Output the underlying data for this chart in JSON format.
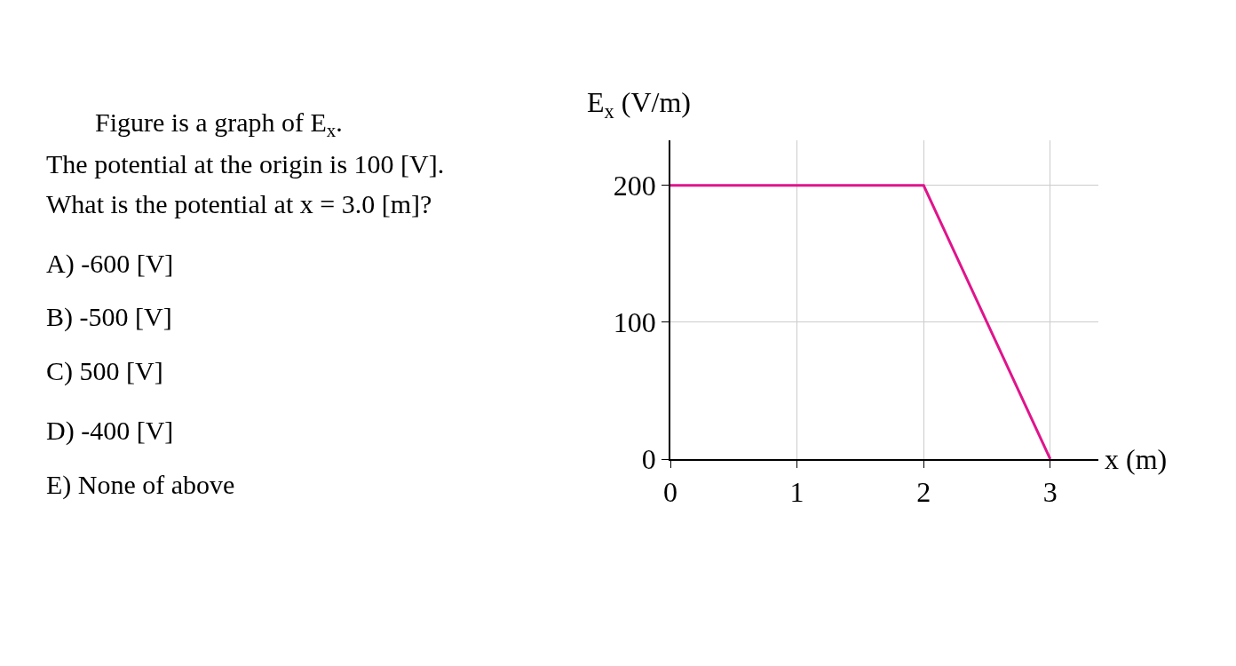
{
  "chart_data": {
    "type": "line",
    "xlabel": "x (m)",
    "ylabel": "E$_{x}$ (V/m)",
    "x": [
      0,
      2,
      3
    ],
    "series": [
      {
        "color": "#e0148c",
        "values": [
          200,
          200,
          0
        ]
      }
    ],
    "xlim": [
      0,
      3.38
    ],
    "ylim": [
      0,
      233
    ],
    "xticks": [
      0,
      1,
      2,
      3
    ],
    "yticks": [
      0,
      100,
      200
    ],
    "grid": true,
    "marker": "none",
    "line_style": "solid",
    "annotations": [
      "Figure is a graph of E$_{x}$.",
      "The potential at the origin is 100 [V].",
      "What is the potential at x = 3.0 [m]?",
      "A) -600 [V]",
      "B) -500 [V]",
      "C) 500 [V]",
      "D) -400 [V]",
      "E) None of above"
    ]
  }
}
